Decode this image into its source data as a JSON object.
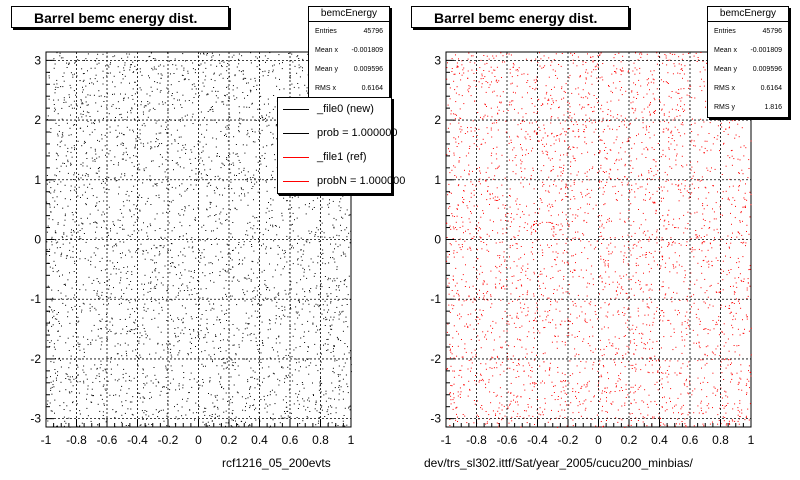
{
  "chart_data": [
    {
      "type": "scatter",
      "title": "Barrel bemc energy dist.",
      "xlabel": "rcf1216_05_200evts",
      "xlim": [
        -1,
        1
      ],
      "ylim": [
        -3.14,
        3.14
      ],
      "xticks": [
        "-1",
        "-0.8",
        "-0.6",
        "-0.4",
        "-0.2",
        "0",
        "0.2",
        "0.4",
        "0.6",
        "0.8",
        "1"
      ],
      "yticks": [
        "3",
        "2",
        "1",
        "0",
        "-1",
        "-2",
        "-3"
      ],
      "grid": true,
      "marker_color": "#000000",
      "stats": {
        "name": "bemcEnergy",
        "rows": [
          {
            "label": "Entries",
            "value": "45796"
          },
          {
            "label": "Mean x",
            "value": "-0.001809"
          },
          {
            "label": "Mean y",
            "value": "0.009596"
          },
          {
            "label": "RMS x",
            "value": "0.6164"
          }
        ]
      },
      "legend": {
        "placement": "top-right",
        "entries": [
          {
            "label": "_file0 (new)",
            "color": "#000000"
          },
          {
            "label": "prob = 1.000000",
            "color": "#000000"
          },
          {
            "label": "_file1 (ref)",
            "color": "#ff0000"
          },
          {
            "label": "probN = 1.000000",
            "color": "#ff0000"
          }
        ]
      },
      "points_note": "uniform density over x in [-1,1], y in [-3.14,3.14]"
    },
    {
      "type": "scatter",
      "title": "Barrel bemc energy dist.",
      "xlabel": "dev/trs_sl302.ittf/Sat/year_2005/cucu200_minbias/",
      "xlim": [
        -1,
        1
      ],
      "ylim": [
        -3.14,
        3.14
      ],
      "xticks": [
        "-1",
        "-0.8",
        "-0.6",
        "-0.4",
        "-0.2",
        "0",
        "0.2",
        "0.4",
        "0.6",
        "0.8",
        "1"
      ],
      "yticks": [
        "3",
        "2",
        "1",
        "0",
        "-1",
        "-2",
        "-3"
      ],
      "grid": true,
      "marker_color": "#ff0000",
      "stats": {
        "name": "bemcEnergy",
        "rows": [
          {
            "label": "Entries",
            "value": "45796"
          },
          {
            "label": "Mean x",
            "value": "-0.001809"
          },
          {
            "label": "Mean y",
            "value": "0.009596"
          },
          {
            "label": "RMS x",
            "value": "0.6164"
          },
          {
            "label": "RMS y",
            "value": "1.816"
          }
        ]
      },
      "points_note": "uniform density over x in [-1,1], y in [-3.14,3.14]"
    }
  ]
}
